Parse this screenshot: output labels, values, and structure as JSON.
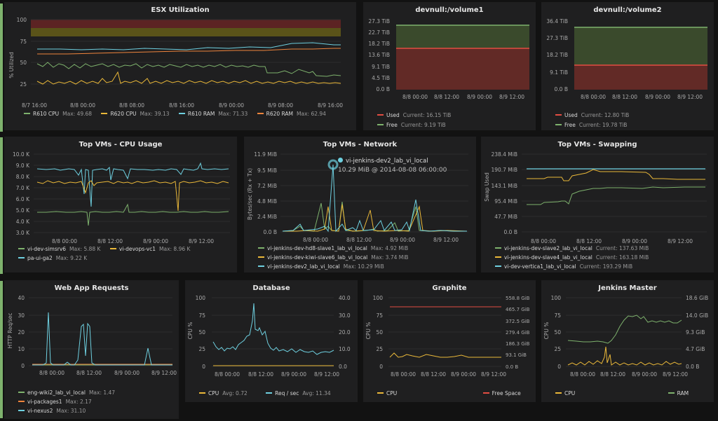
{
  "colors": {
    "green": "#7eb26d",
    "yellow": "#eab839",
    "cyan": "#6ed0e0",
    "orange": "#ef843c",
    "red": "#e24d42",
    "bg": "#1f1f20"
  },
  "esx": {
    "title": "ESX Utilization",
    "ylabel": "% Utilized",
    "yticks": [
      "100",
      "75",
      "50",
      "25"
    ],
    "xticks": [
      "8/7 16:00",
      "8/8 00:00",
      "8/8 08:00",
      "8/8 16:00",
      "8/9 00:00",
      "8/9 08:00",
      "8/9 16:00"
    ],
    "legend": [
      {
        "name": "R610 CPU",
        "stat": "Max: 49.68",
        "color": "#7eb26d"
      },
      {
        "name": "R620 CPU",
        "stat": "Max: 39.13",
        "color": "#eab839"
      },
      {
        "name": "R610 RAM",
        "stat": "Max: 71.33",
        "color": "#6ed0e0"
      },
      {
        "name": "R620 RAM",
        "stat": "Max: 62.94",
        "color": "#ef843c"
      }
    ]
  },
  "vol1": {
    "title": "devnull:/volume1",
    "yticks": [
      "27.3 TiB",
      "22.7 TiB",
      "18.2 TiB",
      "13.6 TiB",
      "9.1 TiB",
      "4.5 TiB",
      "0.0 B"
    ],
    "xticks": [
      "8/8 00:00",
      "8/8 12:00",
      "8/9 00:00",
      "8/9 12:00"
    ],
    "legend": [
      {
        "name": "Used",
        "stat": "Current: 16.15 TiB",
        "color": "#e24d42"
      },
      {
        "name": "Free",
        "stat": "Current: 9.19 TiB",
        "color": "#7eb26d"
      }
    ]
  },
  "vol2": {
    "title": "devnull:/volume2",
    "yticks": [
      "36.4 TiB",
      "27.3 TiB",
      "18.2 TiB",
      "9.1 TiB",
      "0.0 B"
    ],
    "xticks": [
      "8/8 00:00",
      "8/8 12:00",
      "8/9 00:00",
      "8/9 12:00"
    ],
    "legend": [
      {
        "name": "Used",
        "stat": "Current: 12.80 TiB",
        "color": "#e24d42"
      },
      {
        "name": "Free",
        "stat": "Current: 19.78 TiB",
        "color": "#7eb26d"
      }
    ]
  },
  "cpu": {
    "title": "Top VMs - CPU Usage",
    "yticks": [
      "10.0 K",
      "9.0 K",
      "8.0 K",
      "7.0 K",
      "6.0 K",
      "5.0 K",
      "4.0 K",
      "3.0 K"
    ],
    "xticks": [
      "8/8 00:00",
      "8/8 12:00",
      "8/9 00:00",
      "8/9 12:00"
    ],
    "legend": [
      {
        "name": "vi-dev-simsrv6",
        "stat": "Max: 5.88 K",
        "color": "#7eb26d"
      },
      {
        "name": "vi-devops-vc1",
        "stat": "Max: 8.96 K",
        "color": "#eab839"
      },
      {
        "name": "pa-ui-ga2",
        "stat": "Max: 9.22 K",
        "color": "#6ed0e0"
      }
    ]
  },
  "net": {
    "title": "Top VMs - Network",
    "ylabel": "Bytes/sec (Rx + Tx)",
    "yticks": [
      "11.9 MiB",
      "9.5 MiB",
      "7.2 MiB",
      "4.8 MiB",
      "2.4 MiB",
      "0.0 B"
    ],
    "xticks": [
      "8/8 00:00",
      "8/8 12:00",
      "8/9 00:00",
      "8/9 12:00"
    ],
    "tooltip": {
      "series": "vi-jenkins-dev2_lab_vi_local",
      "value": "10.29 MiB @ 2014-08-08 06:00:00"
    },
    "legend": [
      {
        "name": "vi-jenkins-dev-hd8-slave1_lab_vi_local",
        "stat": "Max: 4.92 MiB",
        "color": "#7eb26d"
      },
      {
        "name": "vi-jenkins-dev-kiwi-slave6_lab_vi_local",
        "stat": "Max: 3.74 MiB",
        "color": "#eab839"
      },
      {
        "name": "vi-jenkins-dev2_lab_vi_local",
        "stat": "Max: 10.29 MiB",
        "color": "#6ed0e0"
      }
    ]
  },
  "swap": {
    "title": "Top VMs - Swapping",
    "ylabel": "Swap Used",
    "yticks": [
      "238.4 MiB",
      "190.7 MiB",
      "143.1 MiB",
      "95.4 MiB",
      "47.7 MiB",
      "0.0 B"
    ],
    "xticks": [
      "8/8 00:00",
      "8/8 12:00",
      "8/9 00:00",
      "8/9 12:00"
    ],
    "legend": [
      {
        "name": "vi-jenkins-dev-slave2_lab_vi_local",
        "stat": "Current: 137.63 MiB",
        "color": "#7eb26d"
      },
      {
        "name": "vi-jenkins-dev-slave4_lab_vi_local",
        "stat": "Current: 163.18 MiB",
        "color": "#eab839"
      },
      {
        "name": "vi-dev-vertica1_lab_vi_local",
        "stat": "Current: 193.29 MiB",
        "color": "#6ed0e0"
      }
    ]
  },
  "web": {
    "title": "Web App Requests",
    "ylabel": "HTTP Req/sec",
    "yticks": [
      "40",
      "30",
      "20",
      "10",
      "0"
    ],
    "xticks": [
      "8/8 00:00",
      "8/8 12:00",
      "8/9 00:00",
      "8/9 12:00"
    ],
    "legend": [
      {
        "name": "eng-wiki2_lab_vi_local",
        "stat": "Max: 1.47",
        "color": "#7eb26d"
      },
      {
        "name": "vi-packages1",
        "stat": "Max: 2.17",
        "color": "#ef843c"
      },
      {
        "name": "vi-nexus2",
        "stat": "Max: 31.10",
        "color": "#6ed0e0"
      }
    ]
  },
  "db": {
    "title": "Database",
    "ylabel": "CPU %",
    "yticks": [
      "100",
      "75",
      "50",
      "25",
      "0"
    ],
    "y2ticks": [
      "40.0",
      "30.0",
      "20.0",
      "10.0",
      "0.0"
    ],
    "xticks": [
      "8/8 00:00",
      "8/8 12:00",
      "8/9 00:00",
      "8/9 12:00"
    ],
    "legend": [
      {
        "name": "CPU",
        "stat": "Avg: 0.72",
        "color": "#eab839"
      },
      {
        "name": "Req / sec",
        "stat": "Avg: 11.34",
        "color": "#6ed0e0"
      }
    ]
  },
  "graphite": {
    "title": "Graphite",
    "ylabel": "CPU %",
    "yticks": [
      "100",
      "75",
      "50",
      "25",
      "0"
    ],
    "y2ticks": [
      "558.8 GiB",
      "465.7 GiB",
      "372.5 GiB",
      "279.4 GiB",
      "186.3 GiB",
      "93.1 GiB",
      "0.0 B"
    ],
    "xticks": [
      "8/8 00:00",
      "8/8 12:00",
      "8/9 00:00",
      "8/9 12:00"
    ],
    "legend": [
      {
        "name": "CPU",
        "stat": "",
        "color": "#eab839"
      },
      {
        "name": "Free Space",
        "stat": "",
        "color": "#e24d42"
      }
    ]
  },
  "jenkins": {
    "title": "Jenkins Master",
    "ylabel": "CPU %",
    "yticks": [
      "100",
      "75",
      "50",
      "25",
      "0"
    ],
    "y2ticks": [
      "18.6 GiB",
      "14.0 GiB",
      "9.3 GiB",
      "4.7 GiB",
      "0.0 B"
    ],
    "xticks": [
      "8/8 00:00",
      "8/8 12:00",
      "8/9 00:00",
      "8/9 12:00"
    ],
    "legend": [
      {
        "name": "CPU",
        "stat": "",
        "color": "#eab839"
      },
      {
        "name": "RAM",
        "stat": "",
        "color": "#7eb26d"
      }
    ]
  }
}
